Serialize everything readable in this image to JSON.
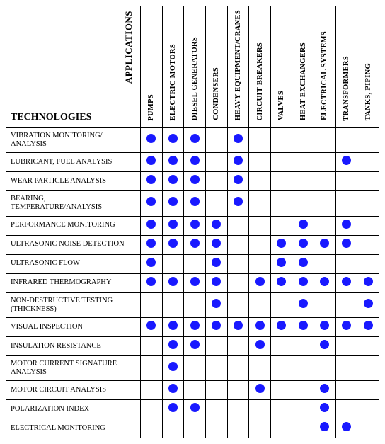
{
  "dot_color": "#1919ff",
  "labels": {
    "technologies": "TECHNOLOGIES",
    "applications": "APPLICATIONS"
  },
  "columns": [
    "PUMPS",
    "ELECTRIC MOTORS",
    "DIESEL GENERATORS",
    "CONDENSERS",
    "HEAVY EQUIPMENT/CRANES",
    "CIRCUIT BREAKERS",
    "VALVES",
    "HEAT EXCHANGERS",
    "ELECTRICAL SYSTEMS",
    "TRANSFORMERS",
    "TANKS, PIPING"
  ],
  "rows": [
    {
      "label": "VIBRATION MONITORING/ ANALYSIS",
      "cells": [
        1,
        1,
        1,
        0,
        1,
        0,
        0,
        0,
        0,
        0,
        0
      ]
    },
    {
      "label": "LUBRICANT, FUEL ANALYSIS",
      "cells": [
        1,
        1,
        1,
        0,
        1,
        0,
        0,
        0,
        0,
        1,
        0
      ]
    },
    {
      "label": "WEAR PARTICLE ANALYSIS",
      "cells": [
        1,
        1,
        1,
        0,
        1,
        0,
        0,
        0,
        0,
        0,
        0
      ]
    },
    {
      "label": "BEARING, TEMPERATURE/ANALYSIS",
      "cells": [
        1,
        1,
        1,
        0,
        1,
        0,
        0,
        0,
        0,
        0,
        0
      ]
    },
    {
      "label": "PERFORMANCE MONITORING",
      "cells": [
        1,
        1,
        1,
        1,
        0,
        0,
        0,
        1,
        0,
        1,
        0
      ]
    },
    {
      "label": "ULTRASONIC NOISE DETECTION",
      "cells": [
        1,
        1,
        1,
        1,
        0,
        0,
        1,
        1,
        1,
        1,
        0
      ]
    },
    {
      "label": "ULTRASONIC FLOW",
      "cells": [
        1,
        0,
        0,
        1,
        0,
        0,
        1,
        1,
        0,
        0,
        0
      ]
    },
    {
      "label": "INFRARED THERMOGRAPHY",
      "cells": [
        1,
        1,
        1,
        1,
        0,
        1,
        1,
        1,
        1,
        1,
        1
      ]
    },
    {
      "label": "NON-DESTRUCTIVE TESTING (THICKNESS)",
      "cells": [
        0,
        0,
        0,
        1,
        0,
        0,
        0,
        1,
        0,
        0,
        1
      ]
    },
    {
      "label": "VISUAL INSPECTION",
      "cells": [
        1,
        1,
        1,
        1,
        1,
        1,
        1,
        1,
        1,
        1,
        1
      ]
    },
    {
      "label": "INSULATION RESISTANCE",
      "cells": [
        0,
        1,
        1,
        0,
        0,
        1,
        0,
        0,
        1,
        0,
        0
      ]
    },
    {
      "label": "MOTOR CURRENT SIGNATURE ANALYSIS",
      "cells": [
        0,
        1,
        0,
        0,
        0,
        0,
        0,
        0,
        0,
        0,
        0
      ]
    },
    {
      "label": "MOTOR CIRCUIT ANALYSIS",
      "cells": [
        0,
        1,
        0,
        0,
        0,
        1,
        0,
        0,
        1,
        0,
        0
      ]
    },
    {
      "label": "POLARIZATION INDEX",
      "cells": [
        0,
        1,
        1,
        0,
        0,
        0,
        0,
        0,
        1,
        0,
        0
      ]
    },
    {
      "label": "ELECTRICAL MONITORING",
      "cells": [
        0,
        0,
        0,
        0,
        0,
        0,
        0,
        0,
        1,
        1,
        0
      ]
    }
  ]
}
